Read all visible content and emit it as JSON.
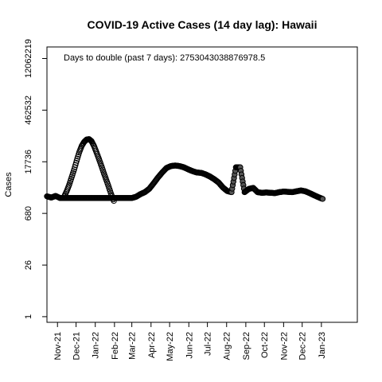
{
  "chart_data": {
    "type": "scatter",
    "title": "COVID-19 Active Cases (14 day lag): Hawaii",
    "xlabel": "",
    "ylabel": "Cases",
    "y_scale": "log",
    "y_ticks": [
      {
        "value": 1,
        "label": "1"
      },
      {
        "value": 26,
        "label": "26"
      },
      {
        "value": 680,
        "label": "680"
      },
      {
        "value": 17736,
        "label": "17736"
      },
      {
        "value": 462532,
        "label": "462532"
      },
      {
        "value": 12062219,
        "label": "12062219"
      }
    ],
    "x_ticks": [
      {
        "date": "2021-11-01",
        "label": "Nov-21"
      },
      {
        "date": "2021-12-01",
        "label": "Dec-21"
      },
      {
        "date": "2022-01-01",
        "label": "Jan-22"
      },
      {
        "date": "2022-02-01",
        "label": "Feb-22"
      },
      {
        "date": "2022-03-01",
        "label": "Mar-22"
      },
      {
        "date": "2022-04-01",
        "label": "Apr-22"
      },
      {
        "date": "2022-05-01",
        "label": "May-22"
      },
      {
        "date": "2022-06-01",
        "label": "Jun-22"
      },
      {
        "date": "2022-07-01",
        "label": "Jul-22"
      },
      {
        "date": "2022-08-01",
        "label": "Aug-22"
      },
      {
        "date": "2022-09-01",
        "label": "Sep-22"
      },
      {
        "date": "2022-10-01",
        "label": "Oct-22"
      },
      {
        "date": "2022-11-01",
        "label": "Nov-22"
      },
      {
        "date": "2022-12-01",
        "label": "Dec-22"
      },
      {
        "date": "2023-01-01",
        "label": "Jan-23"
      }
    ],
    "xlim": [
      "2021-10-15",
      "2023-02-28"
    ],
    "ylim": [
      0.7,
      25000000
    ],
    "annotation": "Days to double (past 7 days): 2753043038876978.5",
    "grid": false,
    "points_filled": [
      [
        "2021-10-15",
        2000
      ],
      [
        "2021-10-22",
        1850
      ],
      [
        "2021-10-29",
        2050
      ],
      [
        "2021-11-05",
        1800
      ],
      [
        "2022-03-01",
        1800
      ],
      [
        "2022-03-08",
        1950
      ],
      [
        "2022-03-15",
        2300
      ],
      [
        "2022-03-22",
        2600
      ],
      [
        "2022-03-29",
        3200
      ],
      [
        "2022-04-05",
        4500
      ],
      [
        "2022-04-12",
        6500
      ],
      [
        "2022-04-19",
        9000
      ],
      [
        "2022-04-26",
        12000
      ],
      [
        "2022-05-03",
        13500
      ],
      [
        "2022-05-10",
        14000
      ],
      [
        "2022-05-17",
        13500
      ],
      [
        "2022-05-24",
        12500
      ],
      [
        "2022-05-31",
        11000
      ],
      [
        "2022-06-07",
        9800
      ],
      [
        "2022-06-14",
        9000
      ],
      [
        "2022-06-21",
        8800
      ],
      [
        "2022-06-28",
        8000
      ],
      [
        "2022-07-05",
        7000
      ],
      [
        "2022-07-12",
        5900
      ],
      [
        "2022-07-19",
        4800
      ],
      [
        "2022-07-26",
        3500
      ],
      [
        "2022-08-02",
        2800
      ],
      [
        "2022-08-09",
        2600
      ],
      [
        "2022-08-16",
        12500
      ],
      [
        "2022-08-23",
        12500
      ],
      [
        "2022-08-30",
        2600
      ],
      [
        "2022-09-06",
        3200
      ],
      [
        "2022-09-13",
        3400
      ],
      [
        "2022-09-20",
        2600
      ],
      [
        "2022-09-27",
        2500
      ],
      [
        "2022-10-04",
        2550
      ],
      [
        "2022-10-11",
        2500
      ],
      [
        "2022-10-18",
        2450
      ],
      [
        "2022-10-25",
        2600
      ],
      [
        "2022-11-01",
        2700
      ],
      [
        "2022-11-08",
        2650
      ],
      [
        "2022-11-15",
        2600
      ],
      [
        "2022-11-22",
        2750
      ],
      [
        "2022-11-29",
        2900
      ],
      [
        "2022-12-06",
        2750
      ],
      [
        "2022-12-13",
        2450
      ],
      [
        "2022-12-20",
        2150
      ],
      [
        "2022-12-27",
        1900
      ],
      [
        "2023-01-03",
        1700
      ]
    ],
    "points_open": [
      [
        "2021-11-12",
        2000
      ],
      [
        "2021-11-16",
        2800
      ],
      [
        "2021-11-20",
        4200
      ],
      [
        "2021-11-24",
        6800
      ],
      [
        "2021-11-28",
        11000
      ],
      [
        "2021-12-02",
        19000
      ],
      [
        "2021-12-06",
        32000
      ],
      [
        "2021-12-10",
        48000
      ],
      [
        "2021-12-14",
        62000
      ],
      [
        "2021-12-18",
        72000
      ],
      [
        "2021-12-22",
        74000
      ],
      [
        "2021-12-26",
        65000
      ],
      [
        "2021-12-30",
        48000
      ],
      [
        "2022-01-03",
        32000
      ],
      [
        "2022-01-07",
        21000
      ],
      [
        "2022-01-11",
        13500
      ],
      [
        "2022-01-15",
        8500
      ],
      [
        "2022-01-19",
        5500
      ],
      [
        "2022-01-23",
        3500
      ],
      [
        "2022-01-27",
        2200
      ],
      [
        "2022-01-31",
        1500
      ]
    ]
  }
}
